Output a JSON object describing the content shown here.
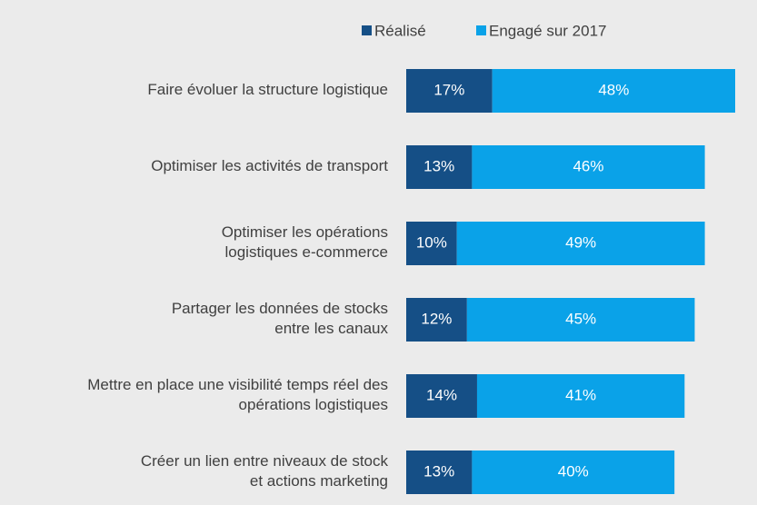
{
  "chart_data": {
    "type": "stacked-barh",
    "categories": [
      "Faire évoluer la structure logistique",
      "Optimiser les activités de transport",
      "Optimiser les opérations\nlogistiques e-commerce",
      "Partager les données de stocks\nentre les canaux",
      "Mettre en place une visibilité temps réel des\nopérations logistiques",
      "Créer un lien entre niveaux de stock\net actions marketing"
    ],
    "series": [
      {
        "name": "Réalisé",
        "color": "#154f86",
        "values": [
          17,
          13,
          10,
          12,
          14,
          13
        ],
        "value_labels": [
          "17%",
          "13%",
          "10%",
          "12%",
          "14%",
          "13%"
        ]
      },
      {
        "name": "Engagé sur 2017",
        "color": "#0aa2e8",
        "values": [
          48,
          46,
          49,
          45,
          41,
          40
        ],
        "value_labels": [
          "48%",
          "46%",
          "49%",
          "45%",
          "41%",
          "40%"
        ]
      }
    ],
    "legend": "top"
  }
}
